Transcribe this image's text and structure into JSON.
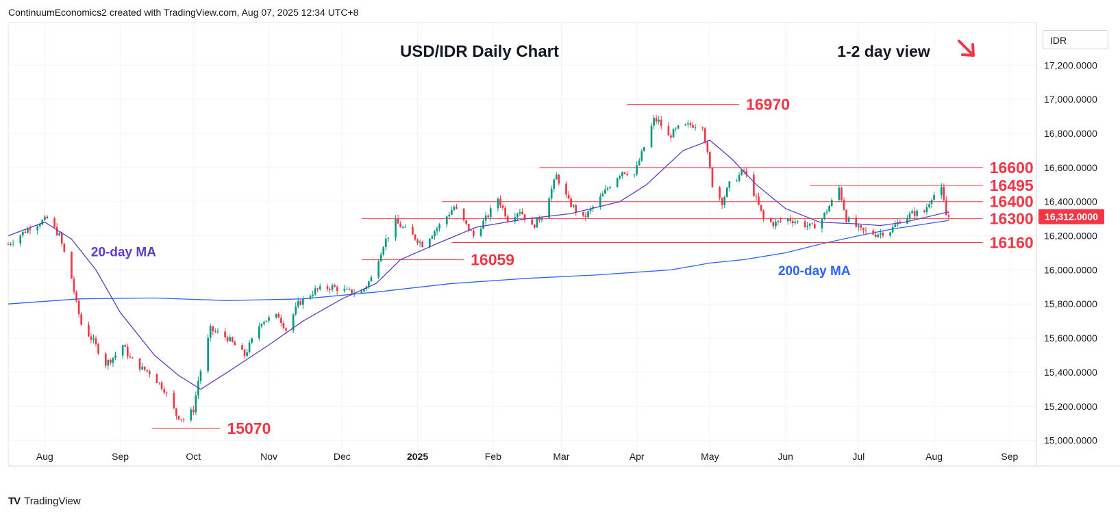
{
  "header": {
    "attribution": "ContinuumEconomics2 created with TradingView.com, Aug 07, 2025 12:34 UTC+8"
  },
  "footer": {
    "brand": "TradingView"
  },
  "colors": {
    "up": "#089981",
    "down": "#f23645",
    "ma20": "#5b3cc4",
    "ma200": "#2962ff",
    "level": "#f23645",
    "annot": "#f23645"
  },
  "chart_data": {
    "type": "candlestick",
    "title": "USD/IDR Daily Chart",
    "view_label": "1-2 day view",
    "view_direction": "down",
    "currency": "IDR",
    "y_axis": {
      "ylim": [
        14850,
        17450
      ],
      "ticks": [
        "15,000.0000",
        "15,200.0000",
        "15,400.0000",
        "15,600.0000",
        "15,800.0000",
        "16,000.0000",
        "16,200.0000",
        "16,400.0000",
        "16,600.0000",
        "16,800.0000",
        "17,000.0000",
        "17,200.0000"
      ],
      "tick_values": [
        15000,
        15200,
        15400,
        15600,
        15800,
        16000,
        16200,
        16400,
        16600,
        16800,
        17000,
        17200
      ]
    },
    "x_axis": {
      "labels": [
        "Aug",
        "Sep",
        "Oct",
        "Nov",
        "Dec",
        "2025",
        "Feb",
        "Mar",
        "Apr",
        "May",
        "Jun",
        "Jul",
        "Aug",
        "Sep"
      ],
      "label_dates": [
        "2024-08-01",
        "2024-09-01",
        "2024-10-01",
        "2024-11-01",
        "2024-12-01",
        "2025-01-01",
        "2025-02-01",
        "2025-03-01",
        "2025-04-01",
        "2025-05-01",
        "2025-06-01",
        "2025-07-01",
        "2025-08-01",
        "2025-09-01"
      ],
      "start": "2024-07-17",
      "end": "2025-09-12"
    },
    "last_price": {
      "value": 16312,
      "label": "16,312.0000"
    },
    "levels": [
      {
        "label": "16970",
        "value": 16970,
        "from": "2025-03-28",
        "to": "2025-05-13"
      },
      {
        "label": "16600",
        "value": 16600,
        "from": "2025-02-20",
        "to": "2025-08-21"
      },
      {
        "label": "16495",
        "value": 16495,
        "from": "2025-06-11",
        "to": "2025-08-21"
      },
      {
        "label": "16400",
        "value": 16400,
        "from": "2025-01-11",
        "to": "2025-08-21"
      },
      {
        "label": "16300",
        "value": 16300,
        "from": "2024-12-09",
        "to": "2025-08-21"
      },
      {
        "label": "16160",
        "value": 16160,
        "from": "2025-01-15",
        "to": "2025-08-21"
      },
      {
        "label": "16059",
        "value": 16059,
        "from": "2024-12-09",
        "to": "2025-01-20"
      },
      {
        "label": "15070",
        "value": 15070,
        "from": "2024-09-14",
        "to": "2024-10-12"
      }
    ],
    "annotations": [
      {
        "text": "20-day MA",
        "date": "2024-08-20",
        "value": 16080,
        "color": "ma20"
      },
      {
        "text": "200-day MA",
        "date": "2025-05-29",
        "value": 15970,
        "color": "ma200"
      }
    ],
    "anchors": [
      [
        "2024-07-17",
        16150
      ],
      [
        "2024-07-26",
        16250
      ],
      [
        "2024-08-02",
        16300
      ],
      [
        "2024-08-07",
        16200
      ],
      [
        "2024-08-12",
        15950
      ],
      [
        "2024-08-14",
        15800
      ],
      [
        "2024-08-16",
        15680
      ],
      [
        "2024-08-21",
        15580
      ],
      [
        "2024-08-26",
        15450
      ],
      [
        "2024-08-30",
        15500
      ],
      [
        "2024-09-02",
        15560
      ],
      [
        "2024-09-05",
        15480
      ],
      [
        "2024-09-10",
        15420
      ],
      [
        "2024-09-13",
        15400
      ],
      [
        "2024-09-19",
        15300
      ],
      [
        "2024-09-24",
        15150
      ],
      [
        "2024-09-27",
        15120
      ],
      [
        "2024-10-01",
        15180
      ],
      [
        "2024-10-03",
        15350
      ],
      [
        "2024-10-08",
        15650
      ],
      [
        "2024-10-15",
        15600
      ],
      [
        "2024-10-22",
        15500
      ],
      [
        "2024-10-29",
        15700
      ],
      [
        "2024-11-05",
        15730
      ],
      [
        "2024-11-08",
        15650
      ],
      [
        "2024-11-13",
        15800
      ],
      [
        "2024-11-20",
        15880
      ],
      [
        "2024-11-27",
        15900
      ],
      [
        "2024-12-04",
        15870
      ],
      [
        "2024-12-09",
        15870
      ],
      [
        "2024-12-13",
        15950
      ],
      [
        "2024-12-18",
        16150
      ],
      [
        "2024-12-23",
        16280
      ],
      [
        "2024-12-30",
        16200
      ],
      [
        "2025-01-03",
        16150
      ],
      [
        "2025-01-10",
        16260
      ],
      [
        "2025-01-16",
        16370
      ],
      [
        "2025-01-21",
        16260
      ],
      [
        "2025-01-24",
        16200
      ],
      [
        "2025-01-30",
        16320
      ],
      [
        "2025-02-03",
        16420
      ],
      [
        "2025-02-07",
        16300
      ],
      [
        "2025-02-12",
        16350
      ],
      [
        "2025-02-17",
        16250
      ],
      [
        "2025-02-21",
        16320
      ],
      [
        "2025-02-27",
        16550
      ],
      [
        "2025-03-04",
        16400
      ],
      [
        "2025-03-10",
        16300
      ],
      [
        "2025-03-17",
        16420
      ],
      [
        "2025-03-21",
        16500
      ],
      [
        "2025-03-26",
        16580
      ],
      [
        "2025-03-31",
        16560
      ],
      [
        "2025-04-08",
        16880
      ],
      [
        "2025-04-10",
        16870
      ],
      [
        "2025-04-14",
        16780
      ],
      [
        "2025-04-18",
        16830
      ],
      [
        "2025-04-23",
        16850
      ],
      [
        "2025-04-28",
        16850
      ],
      [
        "2025-05-02",
        16500
      ],
      [
        "2025-05-06",
        16400
      ],
      [
        "2025-05-09",
        16500
      ],
      [
        "2025-05-15",
        16580
      ],
      [
        "2025-05-19",
        16450
      ],
      [
        "2025-05-23",
        16300
      ],
      [
        "2025-05-27",
        16270
      ],
      [
        "2025-06-02",
        16300
      ],
      [
        "2025-06-06",
        16280
      ],
      [
        "2025-06-12",
        16250
      ],
      [
        "2025-06-16",
        16300
      ],
      [
        "2025-06-20",
        16400
      ],
      [
        "2025-06-23",
        16480
      ],
      [
        "2025-06-26",
        16300
      ],
      [
        "2025-07-02",
        16230
      ],
      [
        "2025-07-08",
        16210
      ],
      [
        "2025-07-14",
        16230
      ],
      [
        "2025-07-18",
        16290
      ],
      [
        "2025-07-23",
        16330
      ],
      [
        "2025-07-28",
        16340
      ],
      [
        "2025-07-31",
        16430
      ],
      [
        "2025-08-04",
        16470
      ],
      [
        "2025-08-06",
        16320
      ],
      [
        "2025-08-07",
        16312
      ]
    ],
    "ma20_points": [
      [
        "2024-07-17",
        16200
      ],
      [
        "2024-08-01",
        16280
      ],
      [
        "2024-08-12",
        16180
      ],
      [
        "2024-08-22",
        16000
      ],
      [
        "2024-09-01",
        15750
      ],
      [
        "2024-09-15",
        15500
      ],
      [
        "2024-09-25",
        15380
      ],
      [
        "2024-10-04",
        15300
      ],
      [
        "2024-10-15",
        15400
      ],
      [
        "2024-11-01",
        15560
      ],
      [
        "2024-11-15",
        15700
      ],
      [
        "2024-12-01",
        15830
      ],
      [
        "2024-12-15",
        15920
      ],
      [
        "2024-12-25",
        16060
      ],
      [
        "2025-01-10",
        16160
      ],
      [
        "2025-01-25",
        16250
      ],
      [
        "2025-02-15",
        16300
      ],
      [
        "2025-03-05",
        16330
      ],
      [
        "2025-03-25",
        16400
      ],
      [
        "2025-04-05",
        16500
      ],
      [
        "2025-04-20",
        16700
      ],
      [
        "2025-05-01",
        16760
      ],
      [
        "2025-05-10",
        16650
      ],
      [
        "2025-05-20",
        16500
      ],
      [
        "2025-06-01",
        16360
      ],
      [
        "2025-06-15",
        16280
      ],
      [
        "2025-06-30",
        16270
      ],
      [
        "2025-07-10",
        16260
      ],
      [
        "2025-07-20",
        16280
      ],
      [
        "2025-08-07",
        16340
      ]
    ],
    "ma200_points": [
      [
        "2024-07-17",
        15800
      ],
      [
        "2024-08-15",
        15830
      ],
      [
        "2024-09-15",
        15835
      ],
      [
        "2024-10-15",
        15820
      ],
      [
        "2024-11-15",
        15830
      ],
      [
        "2024-12-15",
        15870
      ],
      [
        "2025-01-15",
        15920
      ],
      [
        "2025-02-15",
        15950
      ],
      [
        "2025-03-15",
        15970
      ],
      [
        "2025-04-15",
        16000
      ],
      [
        "2025-05-01",
        16040
      ],
      [
        "2025-05-15",
        16060
      ],
      [
        "2025-06-01",
        16100
      ],
      [
        "2025-06-15",
        16150
      ],
      [
        "2025-07-01",
        16200
      ],
      [
        "2025-07-15",
        16240
      ],
      [
        "2025-08-07",
        16290
      ]
    ]
  }
}
